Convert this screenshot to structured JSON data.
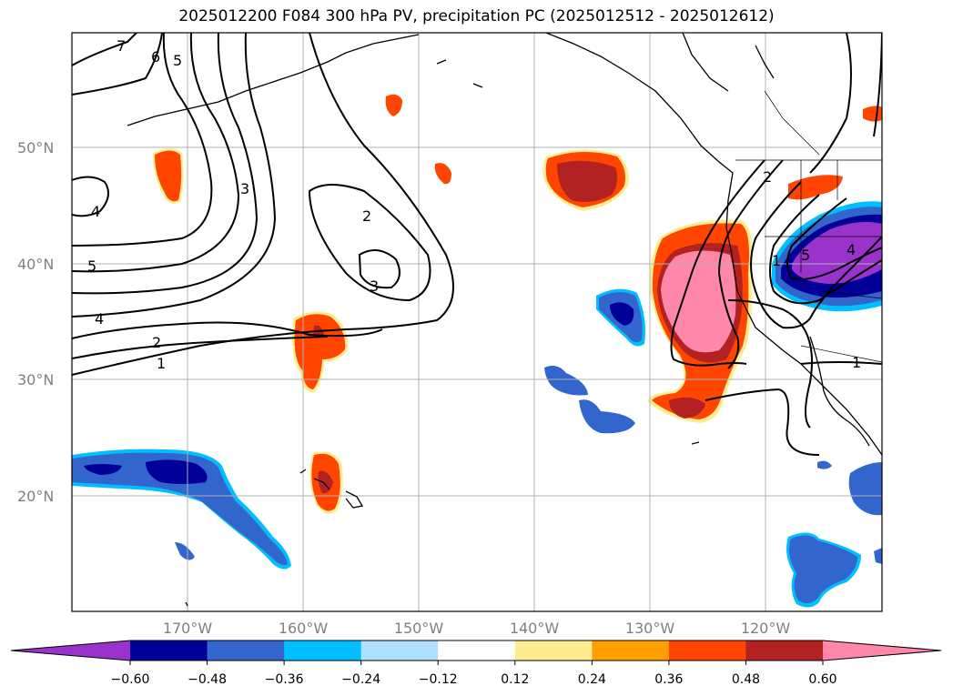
{
  "title": "2025012200 F084 300 hPa PV, precipitation PC (2025012512 - 2025012612)",
  "map": {
    "lon_ticks": [
      "170°W",
      "160°W",
      "150°W",
      "140°W",
      "130°W",
      "120°W"
    ],
    "lat_ticks": [
      "50°N",
      "40°N",
      "30°N",
      "20°N"
    ],
    "pv_contour_labels": [
      "7",
      "6",
      "5",
      "4",
      "5",
      "4",
      "3",
      "2",
      "1",
      "2",
      "3",
      "2",
      "1",
      "5",
      "4",
      "1"
    ]
  },
  "colorbar": {
    "ticks": [
      "−0.60",
      "−0.48",
      "−0.36",
      "−0.24",
      "−0.12",
      "0.12",
      "0.24",
      "0.36",
      "0.48",
      "0.60"
    ],
    "colors": [
      "#9933cc",
      "#000099",
      "#3366cc",
      "#00bfff",
      "#b0e0ff",
      "#ffffff",
      "#ffee90",
      "#ffa000",
      "#ff4500",
      "#b22222",
      "#ff88aa"
    ]
  }
}
